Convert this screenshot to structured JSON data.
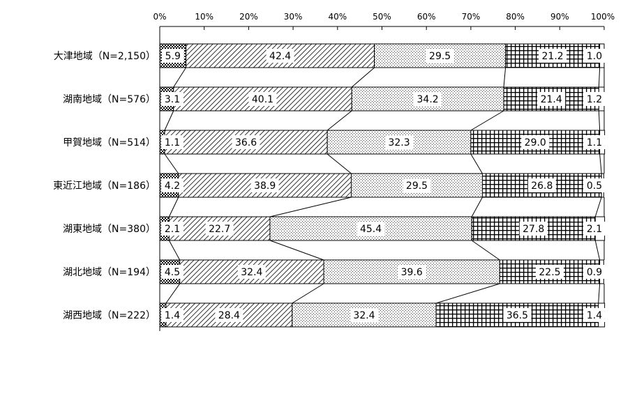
{
  "chart_data": {
    "type": "bar",
    "orientation": "horizontal",
    "stacked": true,
    "percent": true,
    "xlim": [
      0,
      100
    ],
    "x_ticks": [
      "0%",
      "10%",
      "20%",
      "30%",
      "40%",
      "50%",
      "60%",
      "70%",
      "80%",
      "90%",
      "100%"
    ],
    "categories": [
      "大津地域（N=2,150）",
      "湖南地域（N=576）",
      "甲賀地域（N=514）",
      "東近江地域（N=186）",
      "湖東地域（N=380）",
      "湖北地域（N=194）",
      "湖西地域（N=222）"
    ],
    "series": [
      {
        "pattern": "small-check",
        "values": [
          5.9,
          3.1,
          1.1,
          4.2,
          2.1,
          4.5,
          1.4
        ]
      },
      {
        "pattern": "diagonal-hatch",
        "values": [
          42.4,
          40.1,
          36.6,
          38.9,
          22.7,
          32.4,
          28.4
        ]
      },
      {
        "pattern": "dots",
        "values": [
          29.5,
          34.2,
          32.3,
          29.5,
          45.4,
          39.6,
          32.4
        ]
      },
      {
        "pattern": "grid",
        "values": [
          21.2,
          21.4,
          29.0,
          26.8,
          27.8,
          22.5,
          36.5
        ]
      },
      {
        "pattern": "blank",
        "values": [
          1.0,
          1.2,
          1.1,
          0.5,
          2.1,
          0.9,
          1.4
        ]
      }
    ]
  }
}
